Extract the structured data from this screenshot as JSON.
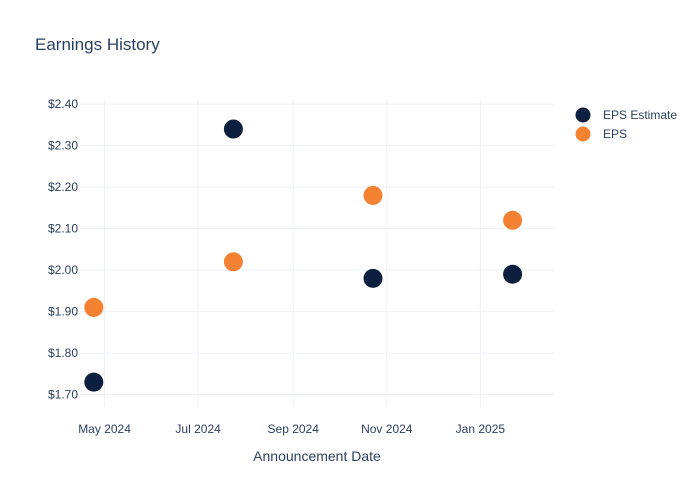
{
  "chart_data": {
    "type": "scatter",
    "title": "Earnings History",
    "xlabel": "Announcement Date",
    "ylabel": "",
    "x_ticks": [
      {
        "date": "2024-05-01",
        "label": "May 2024"
      },
      {
        "date": "2024-07-01",
        "label": "Jul 2024"
      },
      {
        "date": "2024-09-01",
        "label": "Sep 2024"
      },
      {
        "date": "2024-11-01",
        "label": "Nov 2024"
      },
      {
        "date": "2025-01-01",
        "label": "Jan 2025"
      }
    ],
    "xlim": [
      "2024-04-15",
      "2025-02-18"
    ],
    "ylim": [
      1.67,
      2.41
    ],
    "y_ticks": [
      {
        "value": 1.7,
        "label": "$1.70"
      },
      {
        "value": 1.8,
        "label": "$1.80"
      },
      {
        "value": 1.9,
        "label": "$1.90"
      },
      {
        "value": 2.0,
        "label": "$2.00"
      },
      {
        "value": 2.1,
        "label": "$2.10"
      },
      {
        "value": 2.2,
        "label": "$2.20"
      },
      {
        "value": 2.3,
        "label": "$2.30"
      },
      {
        "value": 2.4,
        "label": "$2.40"
      }
    ],
    "grid": true,
    "legend_position": "top-right",
    "series": [
      {
        "name": "EPS Estimate",
        "color": "#0d1f3f",
        "x": [
          "2024-04-24",
          "2024-07-24",
          "2024-10-23",
          "2025-01-22"
        ],
        "values": [
          1.73,
          2.34,
          1.98,
          1.99
        ]
      },
      {
        "name": "EPS",
        "color": "#f58233",
        "x": [
          "2024-04-24",
          "2024-07-24",
          "2024-10-23",
          "2025-01-22"
        ],
        "values": [
          1.91,
          2.02,
          2.18,
          2.12
        ]
      }
    ]
  }
}
